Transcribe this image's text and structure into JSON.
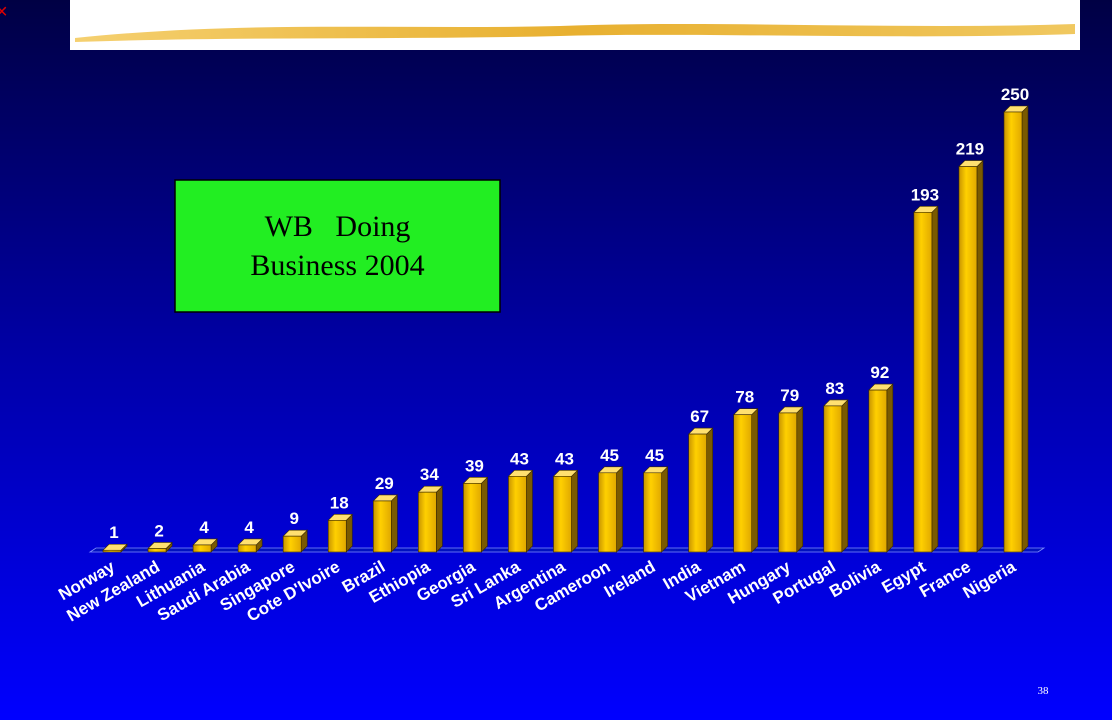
{
  "chart_data": {
    "type": "bar3d",
    "annotation": "WB   Doing Business 2004",
    "slide_number": "38",
    "categories": [
      "Norway",
      "New Zealand",
      "Lithuania",
      "Saudi Arabia",
      "Singapore",
      "Cote D'Ivoire",
      "Brazil",
      "Ethiopia",
      "Georgia",
      "Sri Lanka",
      "Argentina",
      "Cameroon",
      "Ireland",
      "India",
      "Vietnam",
      "Hungary",
      "Portugal",
      "Bolivia",
      "Egypt",
      "France",
      "Nigeria"
    ],
    "values": [
      1,
      2,
      4,
      4,
      9,
      18,
      29,
      34,
      39,
      43,
      43,
      45,
      45,
      67,
      78,
      79,
      83,
      92,
      193,
      219,
      250
    ],
    "color": "#f0c000"
  }
}
